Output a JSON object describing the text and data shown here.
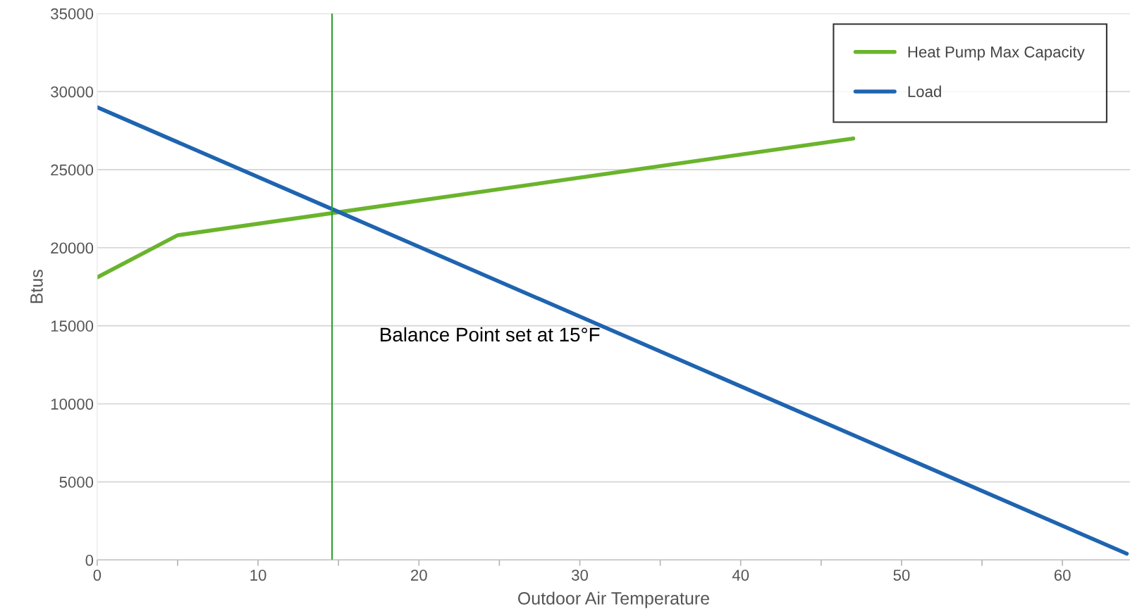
{
  "chart_data": {
    "type": "line",
    "xlabel": "Outdoor Air Temperature",
    "ylabel": "Btus",
    "series": [
      {
        "name": "Heat Pump Max Capacity",
        "color": "#6ab42d",
        "x": [
          0,
          5,
          47
        ],
        "values": [
          18100,
          20800,
          27000
        ]
      },
      {
        "name": "Load",
        "color": "#1f64b0",
        "x": [
          0,
          64
        ],
        "values": [
          29000,
          400
        ]
      }
    ],
    "xlim": [
      0,
      64.2
    ],
    "xticks": [
      0,
      {
        "value": 5,
        "label": null
      },
      10,
      {
        "value": 15,
        "label": null
      },
      20,
      {
        "value": 25,
        "label": null
      },
      30,
      {
        "value": 35,
        "label": null
      },
      40,
      {
        "value": 45,
        "label": null
      },
      50,
      {
        "value": 55,
        "label": null
      },
      60
    ],
    "ylim": [
      0,
      35000
    ],
    "yticks": [
      0,
      5000,
      10000,
      15000,
      20000,
      25000,
      30000,
      35000
    ],
    "ref_lines": [
      {
        "axis": "x",
        "value": 14.6,
        "color": "#2ca02c"
      }
    ],
    "annotations": [
      "Balance Point set at 15°F"
    ],
    "grid": "y",
    "legend": "top right",
    "marker": "none",
    "line_style": "solid"
  }
}
